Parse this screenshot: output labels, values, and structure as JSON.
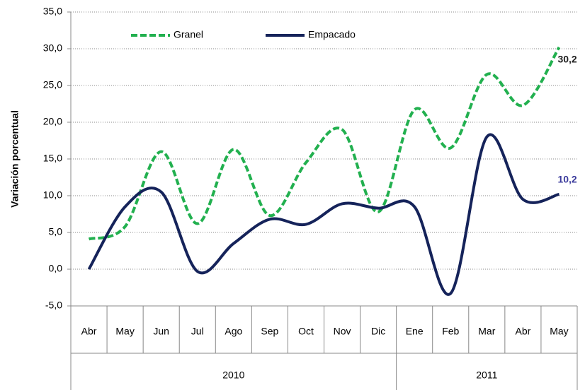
{
  "chart_data": {
    "type": "line",
    "y_label": "Variación porcentual",
    "categories": [
      "Abr",
      "May",
      "Jun",
      "Jul",
      "Ago",
      "Sep",
      "Oct",
      "Nov",
      "Dic",
      "Ene",
      "Feb",
      "Mar",
      "Abr",
      "May"
    ],
    "groups": [
      {
        "label": "2010",
        "span": 9
      },
      {
        "label": "2011",
        "span": 5
      }
    ],
    "series": [
      {
        "name": "Granel",
        "color": "#22b04f",
        "dashed": true,
        "label_color": "#222222",
        "values": [
          4.1,
          5.8,
          16.0,
          6.2,
          16.3,
          7.3,
          14.5,
          19.0,
          7.8,
          21.7,
          16.5,
          26.5,
          22.3,
          30.2
        ],
        "value_labels": [
          null,
          null,
          null,
          null,
          null,
          null,
          null,
          null,
          null,
          null,
          null,
          null,
          null,
          "30,2"
        ]
      },
      {
        "name": "Empacado",
        "color": "#15235a",
        "dashed": false,
        "label_color": "#3b3b9c",
        "values": [
          0.0,
          8.5,
          10.5,
          -0.3,
          3.5,
          6.8,
          6.1,
          8.9,
          8.3,
          8.5,
          -3.3,
          18.0,
          9.5,
          10.2
        ],
        "value_labels": [
          null,
          null,
          null,
          null,
          null,
          null,
          null,
          null,
          null,
          null,
          null,
          null,
          null,
          "10,2"
        ]
      }
    ],
    "ylim": [
      -5,
      35
    ],
    "yticks": [
      {
        "value": -5,
        "label": "-5,0"
      },
      {
        "value": 0,
        "label": "0,0"
      },
      {
        "value": 5,
        "label": "5,0"
      },
      {
        "value": 10,
        "label": "10,0"
      },
      {
        "value": 15,
        "label": "15,0"
      },
      {
        "value": 20,
        "label": "20,0"
      },
      {
        "value": 25,
        "label": "25,0"
      },
      {
        "value": 30,
        "label": "30,0"
      },
      {
        "value": 35,
        "label": "35,0"
      }
    ],
    "grid": true,
    "legend": "top"
  }
}
